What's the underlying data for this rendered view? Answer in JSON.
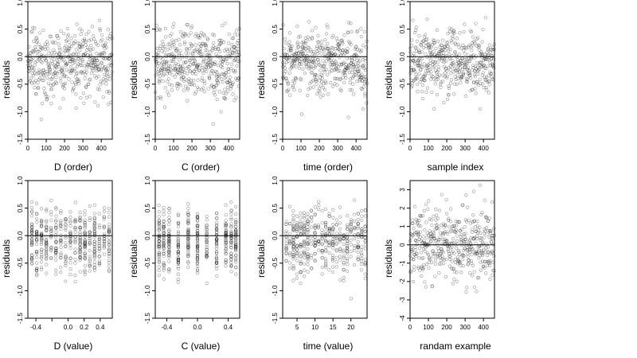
{
  "chart_data": [
    {
      "type": "scatter",
      "xlabel": "D (order)",
      "ylabel": "residuals",
      "xlim": [
        0,
        460
      ],
      "ylim": [
        -1.5,
        1.0
      ],
      "x_ticks": [
        0,
        100,
        200,
        300,
        400
      ],
      "y_ticks": [
        -1.5,
        -1.0,
        -0.5,
        0.0,
        0.5,
        1.0
      ],
      "x_tick_labels": [
        "0",
        "100",
        "200",
        "300",
        "400"
      ],
      "y_tick_labels": [
        "-1.5",
        "-1.0",
        "-0.5",
        "0.0",
        "0.5",
        "1.0"
      ],
      "hline": 0,
      "n_points": 460,
      "x_mode": "order",
      "seed": 11
    },
    {
      "type": "scatter",
      "xlabel": "C (order)",
      "ylabel": "residuals",
      "xlim": [
        0,
        460
      ],
      "ylim": [
        -1.5,
        1.0
      ],
      "x_ticks": [
        0,
        100,
        200,
        300,
        400
      ],
      "y_ticks": [
        -1.5,
        -1.0,
        -0.5,
        0.0,
        0.5,
        1.0
      ],
      "x_tick_labels": [
        "0",
        "100",
        "200",
        "300",
        "400"
      ],
      "y_tick_labels": [
        "-1.5",
        "-1.0",
        "-0.5",
        "0.0",
        "0.5",
        "1.0"
      ],
      "hline": 0,
      "n_points": 460,
      "x_mode": "order",
      "seed": 23
    },
    {
      "type": "scatter",
      "xlabel": "time (order)",
      "ylabel": "residuals",
      "xlim": [
        0,
        460
      ],
      "ylim": [
        -1.5,
        1.0
      ],
      "x_ticks": [
        0,
        100,
        200,
        300,
        400
      ],
      "y_ticks": [
        -1.5,
        -1.0,
        -0.5,
        0.0,
        0.5,
        1.0
      ],
      "x_tick_labels": [
        "0",
        "100",
        "200",
        "300",
        "400"
      ],
      "y_tick_labels": [
        "-1.5",
        "-1.0",
        "-0.5",
        "0.0",
        "0.5",
        "1.0"
      ],
      "hline": 0,
      "n_points": 460,
      "x_mode": "order",
      "seed": 37
    },
    {
      "type": "scatter",
      "xlabel": "sample index",
      "ylabel": "residuals",
      "xlim": [
        0,
        460
      ],
      "ylim": [
        -1.5,
        1.0
      ],
      "x_ticks": [
        0,
        100,
        200,
        300,
        400
      ],
      "y_ticks": [
        -1.5,
        -1.0,
        -0.5,
        0.0,
        0.5,
        1.0
      ],
      "x_tick_labels": [
        "0",
        "100",
        "200",
        "300",
        "400"
      ],
      "y_tick_labels": [
        "-1.5",
        "-1.0",
        "-0.5",
        "0.0",
        "0.5",
        "1.0"
      ],
      "hline": 0,
      "n_points": 460,
      "x_mode": "order",
      "seed": 41
    },
    {
      "type": "scatter",
      "xlabel": "D (value)",
      "ylabel": "residuals",
      "xlim": [
        -0.5,
        0.55
      ],
      "ylim": [
        -1.5,
        1.0
      ],
      "x_ticks": [
        -0.4,
        -0.2,
        0.0,
        0.2,
        0.4
      ],
      "y_ticks": [
        -1.5,
        -1.0,
        -0.5,
        0.0,
        0.5,
        1.0
      ],
      "x_tick_labels": [
        "-0.4",
        "",
        "0.0",
        "0.2",
        "0.4"
      ],
      "y_tick_labels": [
        "-1.5",
        "-1.0",
        "-0.5",
        "0.0",
        "0.5",
        "1.0"
      ],
      "hline": 0,
      "n_points": 460,
      "x_mode": "discrete",
      "x_levels": [
        -0.45,
        -0.39,
        -0.33,
        -0.27,
        -0.21,
        -0.15,
        -0.09,
        -0.03,
        0.03,
        0.09,
        0.15,
        0.21,
        0.27,
        0.33,
        0.39,
        0.45,
        0.51
      ],
      "seed": 53
    },
    {
      "type": "scatter",
      "xlabel": "C (value)",
      "ylabel": "residuals",
      "xlim": [
        -0.55,
        0.55
      ],
      "ylim": [
        -1.5,
        1.0
      ],
      "x_ticks": [
        -0.4,
        -0.2,
        0.0,
        0.2,
        0.4
      ],
      "y_ticks": [
        -1.5,
        -1.0,
        -0.5,
        0.0,
        0.5,
        1.0
      ],
      "x_tick_labels": [
        "-0.4",
        "",
        "0.0",
        "",
        "0.4"
      ],
      "y_tick_labels": [
        "-1.5",
        "-1.0",
        "-0.5",
        "0.0",
        "0.5",
        "1.0"
      ],
      "hline": 0,
      "n_points": 460,
      "x_mode": "discrete",
      "x_levels": [
        -0.5,
        -0.44,
        -0.37,
        -0.25,
        -0.12,
        0.0,
        0.12,
        0.25,
        0.37,
        0.44,
        0.5
      ],
      "seed": 67
    },
    {
      "type": "scatter",
      "xlabel": "time (value)",
      "ylabel": "residuals",
      "xlim": [
        1,
        24.5
      ],
      "ylim": [
        -1.5,
        1.0
      ],
      "x_ticks": [
        5,
        10,
        15,
        20
      ],
      "y_ticks": [
        -1.5,
        -1.0,
        -0.5,
        0.0,
        0.5,
        1.0
      ],
      "x_tick_labels": [
        "5",
        "10",
        "15",
        "20"
      ],
      "y_tick_labels": [
        "-1.5",
        "-1.0",
        "-0.5",
        "0.0",
        "0.5",
        "1.0"
      ],
      "hline": 0,
      "n_points": 460,
      "x_mode": "discrete",
      "x_levels": [
        2,
        3,
        4,
        5,
        6,
        7,
        8,
        9,
        10,
        11,
        12,
        13,
        14,
        15,
        16,
        17,
        18,
        19,
        20,
        21,
        22,
        23,
        24
      ],
      "seed": 79
    },
    {
      "type": "scatter",
      "xlabel": "randam example",
      "ylabel": "residuals",
      "xlim": [
        0,
        460
      ],
      "ylim": [
        -4.0,
        3.5
      ],
      "x_ticks": [
        0,
        100,
        200,
        300,
        400
      ],
      "y_ticks": [
        -4,
        -3,
        -2,
        -1,
        0,
        1,
        2,
        3
      ],
      "x_tick_labels": [
        "0",
        "100",
        "200",
        "300",
        "400"
      ],
      "y_tick_labels": [
        "-4",
        "-3",
        "-2",
        "-1",
        "0",
        "1",
        "2",
        "3"
      ],
      "hline": 0,
      "n_points": 460,
      "x_mode": "order",
      "dist": "normal",
      "seed": 97
    }
  ]
}
